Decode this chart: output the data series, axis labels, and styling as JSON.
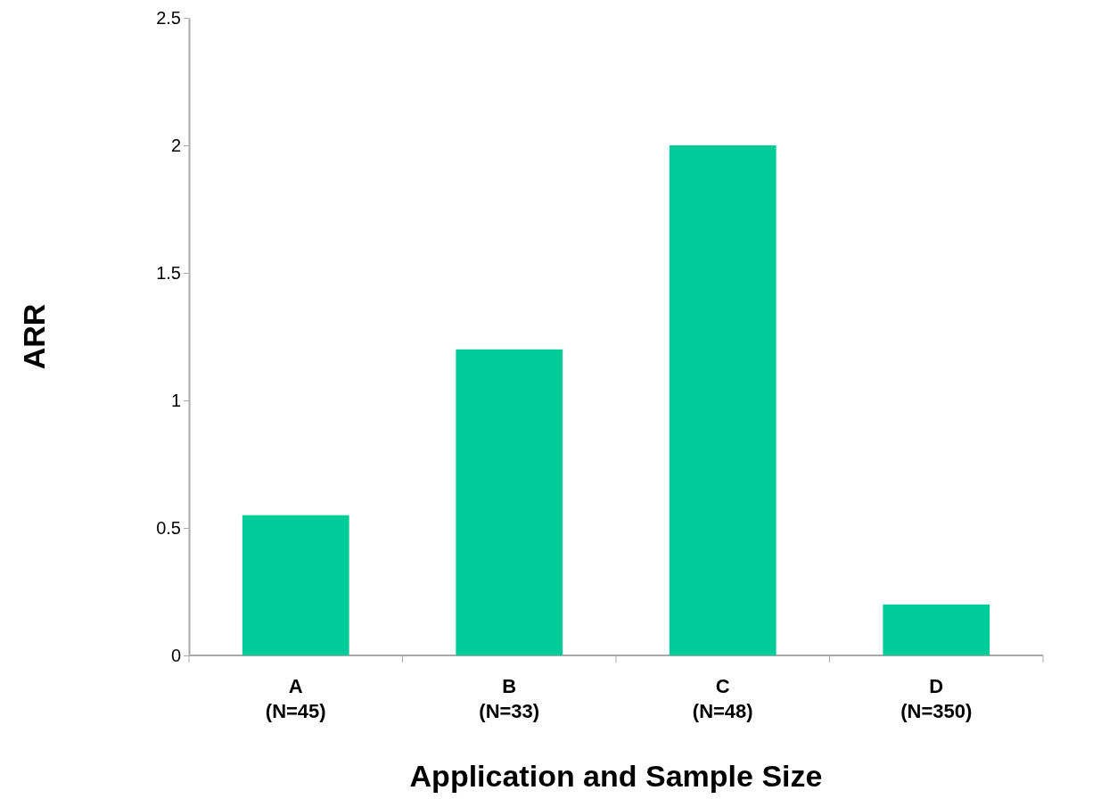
{
  "chart_data": {
    "type": "bar",
    "xlabel": "Application and Sample Size",
    "ylabel": "ARR",
    "categories": [
      "A\n(N=45)",
      "B\n(N=33)",
      "C\n(N=48)",
      "D\n(N=350)"
    ],
    "values": [
      0.55,
      1.2,
      2.0,
      0.2
    ],
    "color": "#00cc99",
    "ylim": [
      0,
      2.5
    ],
    "yticks": [
      0,
      0.5,
      1,
      1.5,
      2,
      2.5
    ],
    "grid": false
  }
}
